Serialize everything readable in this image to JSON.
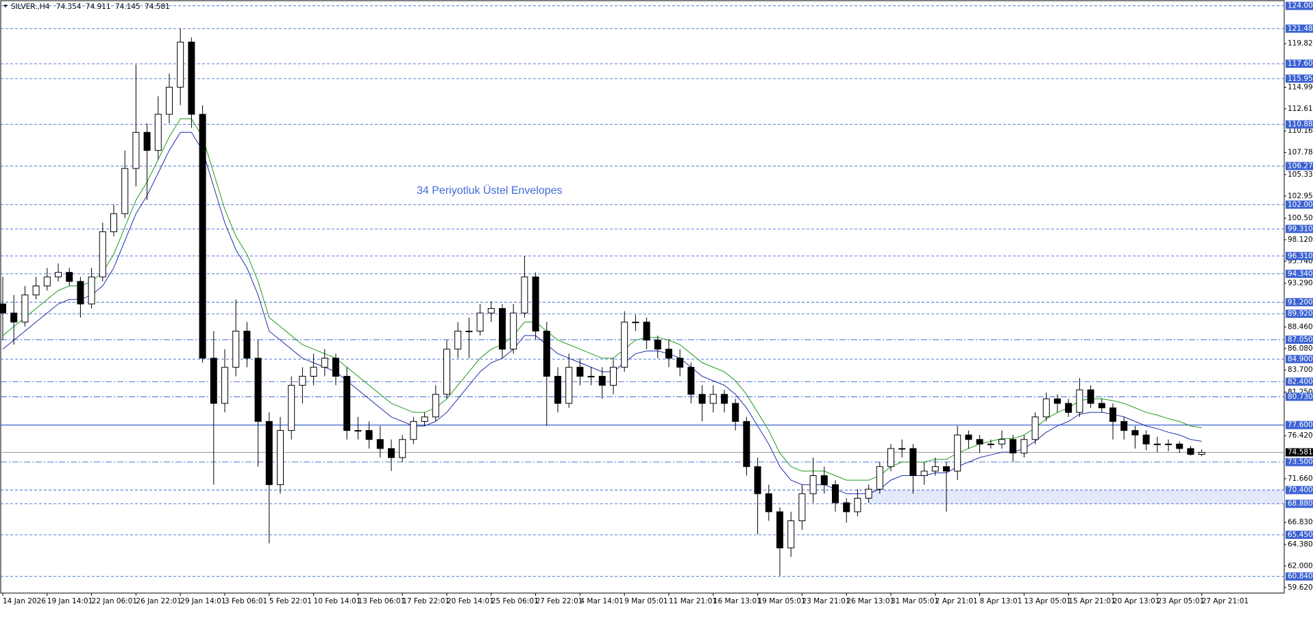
{
  "chart_data": {
    "type": "candlestick",
    "title": "SILVER.,H4",
    "info_values": [
      74.354,
      74.911,
      74.145,
      74.581
    ],
    "annotation": "34 Periyotluk Üstel Envelopes",
    "categories": [
      "14 Jan 2026",
      null,
      null,
      null,
      "19 Jan 14:01",
      null,
      null,
      null,
      "22 Jan 06:01",
      null,
      null,
      null,
      "26 Jan 22:01",
      null,
      null,
      null,
      "29 Jan 14:01",
      null,
      null,
      null,
      "3 Feb 06:01",
      null,
      null,
      null,
      "5 Feb 22:01",
      null,
      null,
      null,
      "10 Feb 14:01",
      null,
      null,
      null,
      "13 Feb 06:01",
      null,
      null,
      null,
      "17 Feb 22:01",
      null,
      null,
      null,
      "20 Feb 14:01",
      null,
      null,
      null,
      "25 Feb 06:01",
      null,
      null,
      null,
      "27 Feb 22:01",
      null,
      null,
      null,
      "4 Mar 14:01",
      null,
      null,
      null,
      "9 Mar 05:01",
      null,
      null,
      null,
      "11 Mar 21:01",
      null,
      null,
      null,
      "16 Mar 13:01",
      null,
      null,
      null,
      "19 Mar 05:01",
      null,
      null,
      null,
      "23 Mar 21:01",
      null,
      null,
      null,
      "26 Mar 13:01",
      null,
      null,
      null,
      "31 Mar 05:01",
      null,
      null,
      null,
      "2 Apr 21:01",
      null,
      null,
      null,
      "8 Apr 13:01",
      null,
      null,
      null,
      "13 Apr 05:01",
      null,
      null,
      null,
      "15 Apr 21:01",
      null,
      null,
      null,
      "20 Apr 13:01",
      null,
      null,
      null,
      "23 Apr 05:01",
      null,
      null,
      null,
      "27 Apr 21:01"
    ],
    "open": [
      91,
      90,
      89,
      92,
      93,
      94,
      94.5,
      93.5,
      91,
      94,
      99,
      101,
      106,
      110,
      108,
      112,
      115,
      120,
      112,
      85,
      80,
      84,
      88,
      85,
      78,
      71,
      77,
      82,
      83,
      84,
      85,
      83,
      77,
      77,
      76,
      75,
      74,
      76,
      78,
      78.5,
      81,
      86,
      88,
      88,
      90,
      90.5,
      86,
      90,
      94,
      88,
      83,
      80,
      84,
      83,
      83,
      82,
      84,
      89,
      89,
      87,
      86,
      85,
      84,
      81,
      80,
      81,
      80,
      78,
      73,
      70,
      68,
      64,
      67,
      70,
      72,
      71,
      69,
      68,
      69.5,
      70.5,
      73,
      75,
      75,
      72,
      72.5,
      73,
      72.5,
      76.5,
      76,
      75.5,
      75.5,
      76,
      74.5,
      76,
      78.5,
      80.5,
      80,
      79,
      81.5,
      80,
      79.5,
      78,
      77,
      76.5,
      75.5,
      75.5,
      75.5,
      75,
      74.354
    ],
    "high": [
      94,
      92,
      93,
      94,
      95,
      95.5,
      95,
      94,
      95,
      100,
      102,
      108,
      117.5,
      111,
      114,
      116.5,
      121.5,
      120.5,
      113,
      88,
      86,
      91.5,
      89,
      87,
      79,
      78.5,
      83,
      84,
      85.5,
      86,
      85.5,
      84,
      78.5,
      78,
      77.5,
      76,
      76.5,
      78.5,
      79,
      82,
      87,
      89,
      89.5,
      91,
      91.3,
      91,
      91,
      96.3,
      94.5,
      89,
      84,
      85.5,
      85,
      84,
      84,
      85,
      90.2,
      89.8,
      89.5,
      87.5,
      87,
      86,
      84.5,
      82,
      82,
      81.5,
      80.5,
      78.5,
      74,
      71,
      68.5,
      68,
      71,
      74,
      73,
      71.5,
      69.5,
      70.5,
      71,
      73.5,
      75.5,
      76,
      75.5,
      73.5,
      74,
      73.5,
      77.5,
      77,
      76.5,
      76,
      77,
      76.5,
      76.5,
      79,
      81.2,
      81,
      80.5,
      82.8,
      82,
      80.5,
      80,
      78.5,
      77.5,
      77,
      76.3,
      76,
      75.8,
      75.3,
      74.911
    ],
    "low": [
      87,
      86.5,
      88.5,
      91.5,
      92.5,
      93.5,
      93,
      89.5,
      90.5,
      93.5,
      98.5,
      100.5,
      104,
      102.5,
      107,
      111,
      113,
      110.5,
      84.5,
      71,
      79,
      83,
      84,
      73,
      64.5,
      70,
      76,
      80,
      82,
      83,
      82,
      76,
      76,
      75,
      74,
      72.5,
      73.5,
      75.5,
      77.5,
      78,
      80.5,
      85,
      85,
      87.5,
      89,
      85,
      85.5,
      89.5,
      87,
      77.5,
      79,
      79.5,
      82,
      82,
      80.5,
      81,
      83.5,
      88,
      86,
      85,
      84,
      83,
      80,
      78,
      79,
      79,
      77,
      72,
      65.5,
      67,
      60.9,
      63,
      66,
      69,
      70,
      68,
      66.8,
      67.5,
      69,
      70,
      72.5,
      74,
      70,
      71,
      72,
      68,
      71.5,
      75,
      74.5,
      75,
      75,
      73.5,
      74,
      75.5,
      78,
      79,
      78.5,
      78.5,
      79.5,
      79,
      76,
      76,
      75,
      74.8,
      74.6,
      74.7,
      74.5,
      74.2,
      74.145
    ],
    "close": [
      90,
      89,
      92,
      93,
      94,
      94.5,
      93.5,
      91,
      94,
      99,
      101,
      106,
      110,
      108,
      112,
      115,
      120,
      112,
      85,
      80,
      84,
      88,
      85,
      78,
      71,
      77,
      82,
      83,
      84,
      85,
      83,
      77,
      77,
      76,
      75,
      74,
      76,
      78,
      78.5,
      81,
      86,
      88,
      88,
      90,
      90.5,
      86,
      90,
      94,
      88,
      83,
      80,
      84,
      83,
      83,
      82,
      84,
      89,
      89,
      87,
      86,
      85,
      84,
      81,
      80,
      81,
      80,
      78,
      73,
      70,
      68,
      64,
      67,
      70,
      72,
      71,
      69,
      68,
      69.5,
      70.5,
      73,
      75,
      75,
      72,
      72.5,
      73,
      72.5,
      76.5,
      76,
      75.5,
      75.5,
      76,
      74.5,
      76,
      78.5,
      80.5,
      80,
      79,
      81.5,
      80,
      79.5,
      78,
      77,
      76.5,
      75.5,
      75.5,
      75.5,
      75,
      74.354,
      74.581
    ],
    "up_color": "#ffffff",
    "down_color": "#000000",
    "series": [
      {
        "color": "#1f9a1f",
        "values": [
          87.5,
          88.5,
          89.5,
          90.5,
          91.5,
          92.5,
          93,
          93,
          93.5,
          94.5,
          96.5,
          99.5,
          102.5,
          104.5,
          107,
          109.5,
          111.5,
          111.5,
          109.5,
          105.5,
          101.5,
          98.5,
          96.5,
          93.5,
          89.5,
          88.5,
          87.5,
          86.5,
          86,
          85.5,
          85,
          84,
          83,
          82,
          81,
          80,
          79.5,
          79,
          79,
          79.5,
          80.5,
          82,
          83.5,
          85,
          86,
          86.5,
          87.5,
          89,
          89,
          88,
          87,
          86.5,
          86,
          85.5,
          85,
          85,
          86,
          87,
          87.3,
          87.3,
          87,
          86.5,
          85.5,
          84.5,
          84,
          83.5,
          82.5,
          81,
          79,
          77,
          74.5,
          73,
          72.5,
          72.5,
          72.5,
          72,
          71.5,
          71.5,
          71.5,
          72,
          73,
          73.5,
          73.5,
          73.5,
          73.8,
          73.8,
          74.5,
          75,
          75.5,
          75.8,
          76.1,
          76.1,
          76.5,
          77.3,
          78.3,
          79,
          79.5,
          80.3,
          80.5,
          80.5,
          80.3,
          80,
          79.5,
          79,
          78.7,
          78.3,
          78,
          77.5,
          77.3
        ]
      },
      {
        "color": "#1c2fa8",
        "values": [
          86,
          87,
          88,
          89,
          90,
          91,
          91.5,
          91.5,
          92,
          93,
          95,
          98,
          101,
          103,
          105.5,
          108,
          110,
          110,
          108,
          104,
          100,
          97,
          95,
          92,
          88,
          87,
          86,
          85,
          84.5,
          84,
          83.5,
          82.5,
          81.5,
          80.5,
          79.5,
          78.5,
          78,
          77.5,
          77.5,
          78,
          79,
          80.5,
          82,
          83.5,
          84.5,
          85,
          86,
          87.5,
          87.5,
          86.5,
          85.5,
          85,
          84.5,
          84,
          83.5,
          83.5,
          84.5,
          85.5,
          85.8,
          85.8,
          85.5,
          85,
          84,
          83,
          82.5,
          82,
          81,
          79.5,
          77.5,
          75.5,
          73,
          71.5,
          71,
          71,
          71,
          70.5,
          70,
          70,
          70,
          70.5,
          71.5,
          72,
          72,
          72,
          72.3,
          72.3,
          73,
          73.5,
          74,
          74.3,
          74.6,
          74.6,
          75,
          75.8,
          76.8,
          77.5,
          78,
          78.8,
          79,
          79,
          78.8,
          78.5,
          78,
          77.5,
          77.2,
          76.8,
          76.5,
          76,
          75.8
        ]
      }
    ],
    "ylim": [
      59.0,
      124.5
    ],
    "yticks": [
      {
        "value": 119.82,
        "label": "119.820"
      },
      {
        "value": 114.99,
        "label": "114.990"
      },
      {
        "value": 112.61,
        "label": "112.610"
      },
      {
        "value": 110.16,
        "label": "110.160"
      },
      {
        "value": 107.78,
        "label": "107.780"
      },
      {
        "value": 105.33,
        "label": "105.330"
      },
      {
        "value": 102.95,
        "label": "102.950"
      },
      {
        "value": 100.5,
        "label": "100.500"
      },
      {
        "value": 98.12,
        "label": "98.120"
      },
      {
        "value": 95.74,
        "label": "95.740"
      },
      {
        "value": 93.29,
        "label": "93.290"
      },
      {
        "value": 88.46,
        "label": "88.460"
      },
      {
        "value": 86.08,
        "label": "86.080"
      },
      {
        "value": 83.7,
        "label": "83.700"
      },
      {
        "value": 81.25,
        "label": "81.250"
      },
      {
        "value": 76.42,
        "label": "76.420"
      },
      {
        "value": 71.66,
        "label": "71.660"
      },
      {
        "value": 66.83,
        "label": "66.830"
      },
      {
        "value": 64.38,
        "label": "64.380"
      },
      {
        "value": 62,
        "label": "62.000"
      },
      {
        "value": 59.62,
        "label": "59.620"
      }
    ],
    "level_color": "#3c63d3",
    "levels": [
      {
        "value": 124,
        "label": "124.000",
        "style": "dashed"
      },
      {
        "value": 121.48,
        "label": "121.480",
        "style": "dashed"
      },
      {
        "value": 117.6,
        "label": "117.600",
        "style": "dashed"
      },
      {
        "value": 115.95,
        "label": "115.950",
        "style": "dashed"
      },
      {
        "value": 110.88,
        "label": "110.880",
        "style": "dashed"
      },
      {
        "value": 106.27,
        "label": "106.270",
        "style": "dashed"
      },
      {
        "value": 102,
        "label": "102.000",
        "style": "dashed"
      },
      {
        "value": 99.31,
        "label": "99.310",
        "style": "dashed"
      },
      {
        "value": 96.31,
        "label": "96.310",
        "style": "dashed"
      },
      {
        "value": 94.34,
        "label": "94.340",
        "style": "dashed"
      },
      {
        "value": 91.2,
        "label": "91.200",
        "style": "dashed"
      },
      {
        "value": 89.92,
        "label": "89.920",
        "style": "dashed"
      },
      {
        "value": 87.05,
        "label": "87.050",
        "style": "dashdot"
      },
      {
        "value": 84.9,
        "label": "84.900",
        "style": "dashed"
      },
      {
        "value": 82.4,
        "label": "82.400",
        "style": "dashdot"
      },
      {
        "value": 80.73,
        "label": "80.730",
        "style": "dashdot"
      },
      {
        "value": 77.6,
        "label": "77.600",
        "style": "solid"
      },
      {
        "value": 73.5,
        "label": "73.500",
        "style": "dashdot"
      },
      {
        "value": 70.4,
        "label": "70.400",
        "style": "dashed"
      },
      {
        "value": 68.88,
        "label": "68.880",
        "style": "dashed"
      },
      {
        "value": 65.45,
        "label": "65.450",
        "style": "dashed"
      },
      {
        "value": 60.84,
        "label": "60.840",
        "style": "dashed"
      }
    ],
    "zone": {
      "low": 68.88,
      "high": 70.4,
      "start": 78
    },
    "grid": false
  }
}
